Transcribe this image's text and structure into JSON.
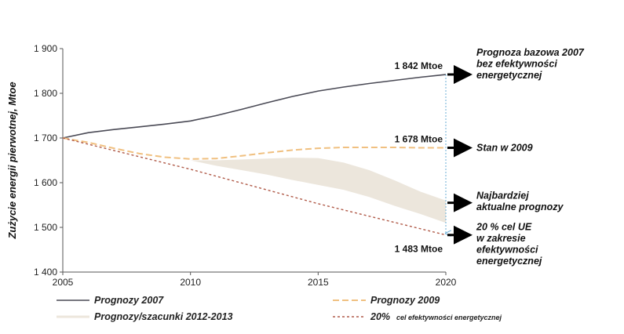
{
  "chart_data": {
    "type": "line",
    "title": "",
    "xlabel": "",
    "ylabel": "Zużycie energii pierwotnej, Mtoe",
    "xlim": [
      2005,
      2020
    ],
    "ylim": [
      1400,
      1900
    ],
    "xticks": [
      2005,
      2010,
      2015,
      2020
    ],
    "yticks": [
      1400,
      1500,
      1600,
      1700,
      1800,
      1900
    ],
    "ytick_labels": [
      "1 400",
      "1 500",
      "1 600",
      "1 700",
      "1 800",
      "1 900"
    ],
    "series": [
      {
        "name": "Prognozy 2007",
        "style": "solid",
        "color": "#4a4a55",
        "x": [
          2005,
          2006,
          2007,
          2008,
          2009,
          2010,
          2011,
          2012,
          2013,
          2014,
          2015,
          2016,
          2017,
          2018,
          2019,
          2020
        ],
        "values": [
          1700,
          1712,
          1719,
          1725,
          1731,
          1738,
          1750,
          1764,
          1779,
          1793,
          1805,
          1814,
          1822,
          1829,
          1836,
          1842
        ]
      },
      {
        "name": "Prognozy 2009",
        "style": "dashed",
        "color": "#f0c080",
        "x": [
          2005,
          2006,
          2007,
          2008,
          2009,
          2010,
          2011,
          2012,
          2013,
          2014,
          2015,
          2016,
          2017,
          2018,
          2019,
          2020
        ],
        "values": [
          1700,
          1690,
          1677,
          1665,
          1657,
          1653,
          1654,
          1660,
          1667,
          1673,
          1677,
          1679,
          1679,
          1679,
          1678,
          1678
        ]
      },
      {
        "name": "20% cel efektywności energetycznej",
        "legend_prefix": "20%",
        "legend_rest": "cel efektywności energetycznej",
        "style": "dotted",
        "color": "#b05a48",
        "x": [
          2005,
          2010,
          2015,
          2020
        ],
        "values": [
          1700,
          1630,
          1553,
          1483
        ]
      }
    ],
    "band": {
      "name": "Prognozy/szacunki 2012-2013",
      "color": "#ece6dc",
      "x": [
        2010,
        2011,
        2012,
        2013,
        2014,
        2015,
        2016,
        2017,
        2018,
        2019,
        2020
      ],
      "upper": [
        1650,
        1650,
        1652,
        1654,
        1656,
        1655,
        1645,
        1628,
        1605,
        1580,
        1560
      ],
      "lower": [
        1650,
        1638,
        1628,
        1618,
        1606,
        1595,
        1584,
        1568,
        1548,
        1530,
        1510
      ]
    },
    "vertical_line": {
      "x": 2020,
      "from": 1842,
      "to": 1483,
      "color": "#6aaed6"
    },
    "value_labels": [
      {
        "x": 2020,
        "y": 1842,
        "text": "1 842 Mtoe"
      },
      {
        "x": 2020,
        "y": 1678,
        "text": "1 678 Mtoe"
      },
      {
        "x": 2020,
        "y": 1483,
        "text": "1 483 Mtoe"
      }
    ],
    "annotations": [
      {
        "y": 1842,
        "lines": [
          "Prognoza bazowa 2007",
          "bez efektywności",
          "energetycznej"
        ]
      },
      {
        "y": 1678,
        "lines": [
          "Stan w 2009"
        ]
      },
      {
        "y": 1555,
        "lines": [
          "Najbardziej",
          "aktualne prognozy"
        ]
      },
      {
        "y": 1483,
        "lines": [
          "20 % cel UE",
          "w zakresie",
          "efektywności",
          "energetycznej"
        ]
      }
    ],
    "legend_position": "bottom"
  }
}
